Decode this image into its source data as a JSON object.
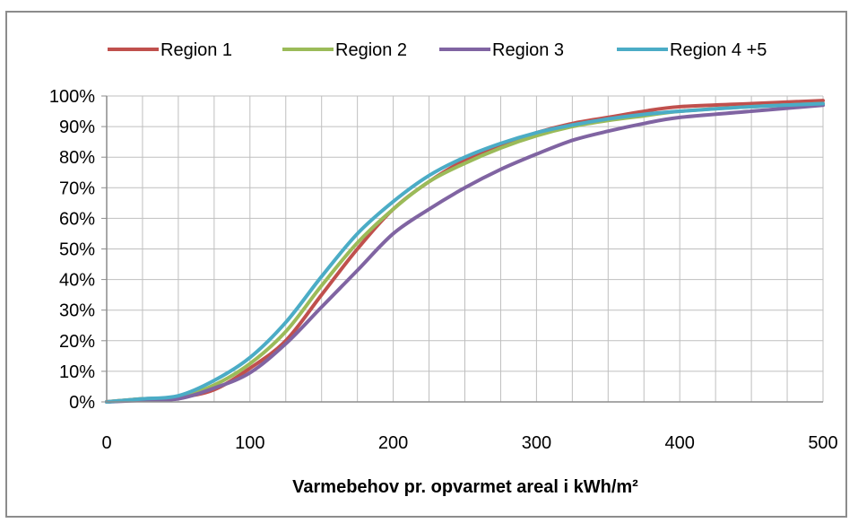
{
  "chart_data": {
    "type": "line",
    "title": "",
    "xlabel": "Varmebehov pr. opvarmet areal i kWh/m²",
    "ylabel": "",
    "xlim": [
      0,
      500
    ],
    "ylim": [
      0,
      100
    ],
    "x_ticks": [
      0,
      100,
      200,
      300,
      400,
      500
    ],
    "y_ticks": [
      0,
      10,
      20,
      30,
      40,
      50,
      60,
      70,
      80,
      90,
      100
    ],
    "y_tick_format": "{v}%",
    "grid": true,
    "legend_position": "top",
    "series": [
      {
        "name": "Region 1",
        "color": "#c0504d",
        "points": [
          [
            0,
            0
          ],
          [
            25,
            1
          ],
          [
            50,
            1.5
          ],
          [
            75,
            4
          ],
          [
            100,
            11
          ],
          [
            125,
            20
          ],
          [
            150,
            35
          ],
          [
            175,
            50
          ],
          [
            200,
            63
          ],
          [
            225,
            72
          ],
          [
            250,
            79
          ],
          [
            275,
            84
          ],
          [
            300,
            88
          ],
          [
            325,
            91
          ],
          [
            350,
            93
          ],
          [
            375,
            95
          ],
          [
            400,
            96.5
          ],
          [
            450,
            97.5
          ],
          [
            500,
            98.5
          ]
        ]
      },
      {
        "name": "Region 2",
        "color": "#9bbb59",
        "points": [
          [
            0,
            0
          ],
          [
            25,
            1
          ],
          [
            50,
            1.5
          ],
          [
            75,
            5.5
          ],
          [
            100,
            12.5
          ],
          [
            125,
            23
          ],
          [
            150,
            38
          ],
          [
            175,
            52
          ],
          [
            200,
            63
          ],
          [
            225,
            72
          ],
          [
            250,
            78
          ],
          [
            275,
            83
          ],
          [
            300,
            87
          ],
          [
            325,
            90
          ],
          [
            350,
            92
          ],
          [
            375,
            93.5
          ],
          [
            400,
            95
          ],
          [
            450,
            96.5
          ],
          [
            500,
            97.5
          ]
        ]
      },
      {
        "name": "Region 3",
        "color": "#8064a2",
        "points": [
          [
            0,
            0
          ],
          [
            25,
            0.5
          ],
          [
            50,
            1
          ],
          [
            75,
            4.5
          ],
          [
            100,
            9.5
          ],
          [
            125,
            19
          ],
          [
            150,
            31
          ],
          [
            175,
            43
          ],
          [
            200,
            55
          ],
          [
            225,
            63
          ],
          [
            250,
            70
          ],
          [
            275,
            76
          ],
          [
            300,
            81
          ],
          [
            325,
            85.5
          ],
          [
            350,
            88.5
          ],
          [
            375,
            91
          ],
          [
            400,
            93
          ],
          [
            450,
            95
          ],
          [
            500,
            97
          ]
        ]
      },
      {
        "name": "Region 4 +5",
        "color": "#4bacc6",
        "points": [
          [
            0,
            0
          ],
          [
            25,
            1
          ],
          [
            50,
            2
          ],
          [
            75,
            7
          ],
          [
            100,
            14.5
          ],
          [
            125,
            26
          ],
          [
            150,
            41
          ],
          [
            175,
            55
          ],
          [
            200,
            65.5
          ],
          [
            225,
            74
          ],
          [
            250,
            80
          ],
          [
            275,
            84.5
          ],
          [
            300,
            88
          ],
          [
            325,
            90.5
          ],
          [
            350,
            92.5
          ],
          [
            375,
            94
          ],
          [
            400,
            95
          ],
          [
            450,
            96.5
          ],
          [
            500,
            97.5
          ]
        ]
      }
    ]
  }
}
